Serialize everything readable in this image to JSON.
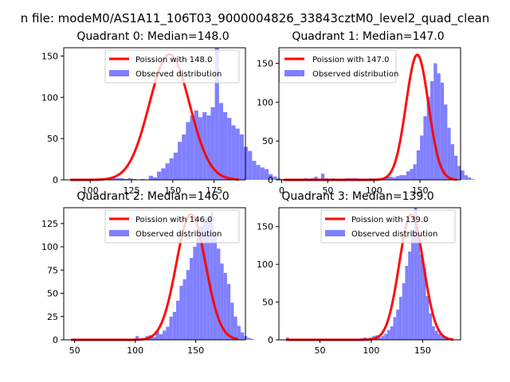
{
  "figure": {
    "suptitle": "n file: modeM0/AS1A11_106T03_9000004826_33843cztM0_level2_quad_clean"
  },
  "colors": {
    "poisson": "#ff0000",
    "observed": "#8080ff"
  },
  "chart_data": [
    {
      "type": "bar",
      "quadrant": 0,
      "title": "Quadrant 0: Median=148.0",
      "xlabel": "",
      "ylabel": "",
      "xlim": [
        84,
        194
      ],
      "ylim": [
        0,
        160
      ],
      "xticks": [
        100,
        125,
        150,
        175
      ],
      "yticks": [
        0,
        50,
        100,
        150
      ],
      "legend": [
        "Poission with 148.0",
        "Observed distribution"
      ],
      "legend_loc": "upper right",
      "poisson_mean": 148.0,
      "poisson_peak": 152,
      "poisson_range": [
        88,
        190
      ],
      "bins": {
        "start": 88,
        "width": 2.5,
        "counts": [
          0,
          0,
          0,
          0,
          0,
          0,
          0,
          0,
          0,
          0,
          2,
          2,
          2,
          1,
          2,
          1,
          0,
          1,
          0,
          5,
          3,
          10,
          14,
          20,
          26,
          33,
          46,
          55,
          70,
          78,
          84,
          76,
          82,
          78,
          88,
          160,
          93,
          82,
          75,
          66,
          62,
          55,
          40,
          35,
          23,
          18,
          15,
          13,
          7,
          4,
          2,
          1,
          0,
          0,
          0,
          0,
          0,
          0,
          0,
          0
        ]
      }
    },
    {
      "type": "bar",
      "quadrant": 1,
      "title": "Quadrant 1: Median=147.0",
      "xlabel": "",
      "ylabel": "",
      "xlim": [
        -3,
        194
      ],
      "ylim": [
        0,
        170
      ],
      "xticks": [
        0,
        50,
        100,
        150
      ],
      "yticks": [
        0,
        50,
        100,
        150
      ],
      "legend": [
        "Poission with 147.0",
        "Observed distribution"
      ],
      "legend_loc": "upper left",
      "poisson_mean": 147.0,
      "poisson_peak": 161,
      "poisson_range": [
        2,
        190
      ],
      "bins": {
        "start": 2,
        "width": 3.7,
        "counts": [
          0,
          1,
          1,
          1,
          1,
          1,
          2,
          1,
          2,
          4,
          1,
          8,
          2,
          1,
          2,
          1,
          1,
          1,
          2,
          2,
          2,
          2,
          1,
          1,
          1,
          2,
          1,
          1,
          1,
          1,
          5,
          4,
          3,
          5,
          6,
          6,
          11,
          14,
          20,
          38,
          57,
          82,
          107,
          127,
          150,
          137,
          125,
          97,
          67,
          46,
          31,
          18,
          12,
          6,
          3,
          1,
          0,
          0,
          0,
          0,
          0
        ]
      }
    },
    {
      "type": "bar",
      "quadrant": 2,
      "title": "Quadrant 2: Median=146.0",
      "xlabel": "",
      "ylabel": "",
      "xlim": [
        41,
        191
      ],
      "ylim": [
        0,
        142
      ],
      "xticks": [
        50,
        100,
        150
      ],
      "yticks": [
        0,
        25,
        50,
        75,
        100,
        125
      ],
      "legend": [
        "Poission with 146.0",
        "Observed distribution"
      ],
      "legend_loc": "upper right",
      "poisson_mean": 146.0,
      "poisson_peak": 135,
      "poisson_range": [
        47,
        185
      ],
      "bins": {
        "start": 47,
        "width": 2.8,
        "counts": [
          1,
          1,
          0,
          0,
          0,
          0,
          0,
          0,
          0,
          0,
          0,
          0,
          0,
          0,
          0,
          0,
          0,
          0,
          0,
          4,
          0,
          1,
          4,
          5,
          3,
          9,
          6,
          10,
          14,
          25,
          30,
          42,
          58,
          65,
          75,
          88,
          100,
          110,
          122,
          132,
          130,
          137,
          115,
          98,
          82,
          72,
          60,
          40,
          25,
          15,
          8,
          4,
          2,
          1,
          0,
          0,
          0,
          0,
          0,
          0
        ]
      }
    },
    {
      "type": "bar",
      "quadrant": 3,
      "title": "Quadrant 3: Median=139.0",
      "xlabel": "",
      "ylabel": "",
      "xlim": [
        10,
        187
      ],
      "ylim": [
        0,
        175
      ],
      "xticks": [
        50,
        100,
        150
      ],
      "yticks": [
        0,
        50,
        100,
        150
      ],
      "legend": [
        "Poission with 139.0",
        "Observed distribution"
      ],
      "legend_loc": "upper right",
      "poisson_mean": 139.0,
      "poisson_peak": 166,
      "poisson_range": [
        17,
        180
      ],
      "bins": {
        "start": 17,
        "width": 2.9,
        "counts": [
          3,
          0,
          0,
          0,
          0,
          0,
          0,
          0,
          0,
          0,
          0,
          0,
          0,
          0,
          0,
          0,
          0,
          0,
          0,
          0,
          0,
          0,
          0,
          0,
          1,
          2,
          3,
          2,
          3,
          5,
          6,
          3,
          5,
          8,
          13,
          18,
          30,
          40,
          57,
          75,
          98,
          117,
          145,
          175,
          140,
          113,
          95,
          58,
          35,
          18,
          12,
          8,
          5,
          2,
          1,
          0,
          0,
          0,
          0,
          0,
          0
        ]
      }
    }
  ]
}
